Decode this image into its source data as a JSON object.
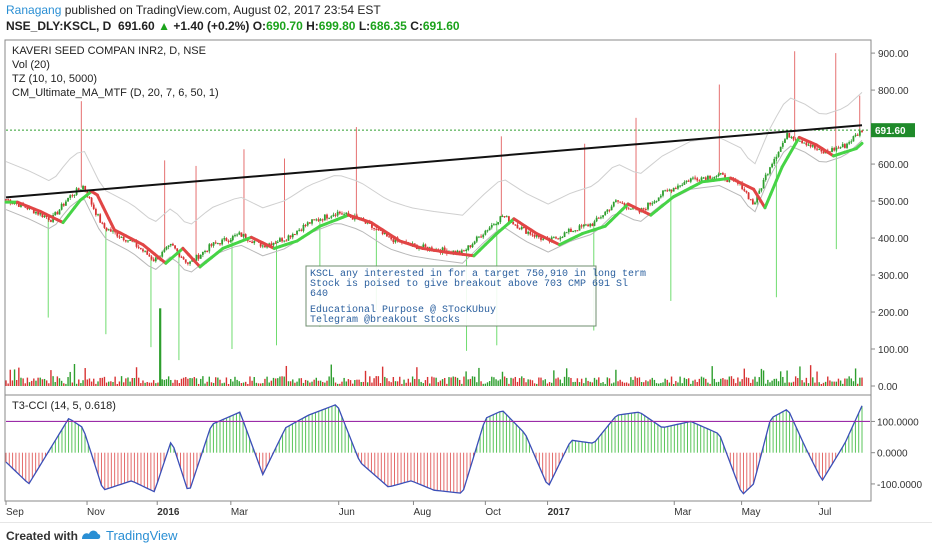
{
  "header": {
    "author": "Ranagang",
    "published": "published on TradingView.com, August 02, 2017 23:54 EST",
    "symbol": "NSE_DLY:KSCL, D",
    "last": "691.60",
    "arrow": "▲",
    "change": "+1.40 (+0.2%)",
    "o_label": "O:",
    "o": "690.70",
    "h_label": "H:",
    "h": "699.80",
    "l_label": "L:",
    "l": "686.35",
    "c_label": "C:",
    "c": "691.60"
  },
  "legend": [
    "KAVERI SEED COMPAN INR2, D, NSE",
    "Vol (20)",
    "TZ (10, 10, 5000)",
    "CM_Ultimate_MA_MTF (D, 20, 7, 6, 50, 1)"
  ],
  "osc_title": "T3-CCI (14, 5, 0.618)",
  "annotation": [
    "KSCL any interested in for a target 750,910 in long term",
    "Stock is poised to give breakout above 703 CMP 691 Sl",
    "640",
    "",
    "Educational Purpose @ STocKUbuy",
    "Telegram @breakout Stocks"
  ],
  "footer": {
    "created": "Created with",
    "brand": "TradingView"
  },
  "colors": {
    "up": "#2e9e2e",
    "down": "#d83333",
    "ma_up": "#46d446",
    "ma_down": "#e14545",
    "trend": "#111111",
    "tag_bg": "#1f8a2a",
    "osc_line": "#3b4fb8",
    "osc_level": "#9b2ca8"
  },
  "chart_data": {
    "type": "candlestick",
    "price_ticks": [
      "900.00",
      "800.00",
      "700.00",
      "600.00",
      "500.00",
      "400.00",
      "300.00",
      "200.00",
      "100.00",
      "0.00"
    ],
    "price_range": [
      0,
      930
    ],
    "last_price_label": "691.60",
    "osc_ticks": [
      "100.0000",
      "0.0000",
      "-100.0000"
    ],
    "osc_range": [
      -145,
      175
    ],
    "osc_level": 100,
    "x_labels": [
      {
        "label": "Sep",
        "t": 0
      },
      {
        "label": "Nov",
        "t": 0.142
      },
      {
        "label": "2016",
        "t": 0.265
      },
      {
        "label": "Mar",
        "t": 0.394
      },
      {
        "label": "Jun",
        "t": 0.583
      },
      {
        "label": "Aug",
        "t": 0.714
      },
      {
        "label": "Oct",
        "t": 0.84
      },
      {
        "label": "2017",
        "t": 0.949
      },
      {
        "label": "Mar",
        "t": 1.171
      },
      {
        "label": "May",
        "t": 1.289
      },
      {
        "label": "Jul",
        "t": 1.424
      }
    ],
    "trendline": [
      {
        "t": 0,
        "price": 510
      },
      {
        "t": 1.5,
        "price": 705
      }
    ],
    "price_path": [
      {
        "t": 0,
        "price": 505
      },
      {
        "t": 0.04,
        "price": 480
      },
      {
        "t": 0.08,
        "price": 450
      },
      {
        "t": 0.11,
        "price": 510
      },
      {
        "t": 0.135,
        "price": 540
      },
      {
        "t": 0.17,
        "price": 430
      },
      {
        "t": 0.22,
        "price": 390
      },
      {
        "t": 0.26,
        "price": 340
      },
      {
        "t": 0.29,
        "price": 380
      },
      {
        "t": 0.32,
        "price": 330
      },
      {
        "t": 0.36,
        "price": 380
      },
      {
        "t": 0.41,
        "price": 410
      },
      {
        "t": 0.45,
        "price": 380
      },
      {
        "t": 0.49,
        "price": 400
      },
      {
        "t": 0.53,
        "price": 440
      },
      {
        "t": 0.58,
        "price": 470
      },
      {
        "t": 0.62,
        "price": 450
      },
      {
        "t": 0.67,
        "price": 400
      },
      {
        "t": 0.71,
        "price": 380
      },
      {
        "t": 0.75,
        "price": 370
      },
      {
        "t": 0.8,
        "price": 360
      },
      {
        "t": 0.84,
        "price": 420
      },
      {
        "t": 0.87,
        "price": 460
      },
      {
        "t": 0.91,
        "price": 420
      },
      {
        "t": 0.95,
        "price": 390
      },
      {
        "t": 0.99,
        "price": 420
      },
      {
        "t": 1.03,
        "price": 440
      },
      {
        "t": 1.07,
        "price": 500
      },
      {
        "t": 1.11,
        "price": 470
      },
      {
        "t": 1.15,
        "price": 520
      },
      {
        "t": 1.2,
        "price": 560
      },
      {
        "t": 1.25,
        "price": 570
      },
      {
        "t": 1.29,
        "price": 540
      },
      {
        "t": 1.31,
        "price": 490
      },
      {
        "t": 1.34,
        "price": 600
      },
      {
        "t": 1.37,
        "price": 680
      },
      {
        "t": 1.4,
        "price": 660
      },
      {
        "t": 1.43,
        "price": 630
      },
      {
        "t": 1.47,
        "price": 650
      },
      {
        "t": 1.5,
        "price": 692
      }
    ],
    "tz_spikes_high": [
      {
        "t": 0.132,
        "price": 770
      },
      {
        "t": 0.278,
        "price": 610
      },
      {
        "t": 0.333,
        "price": 595
      },
      {
        "t": 0.417,
        "price": 640
      },
      {
        "t": 0.488,
        "price": 615
      },
      {
        "t": 0.614,
        "price": 700
      },
      {
        "t": 0.868,
        "price": 675
      },
      {
        "t": 1.014,
        "price": 655
      },
      {
        "t": 1.104,
        "price": 725
      },
      {
        "t": 1.25,
        "price": 815
      },
      {
        "t": 1.382,
        "price": 905
      },
      {
        "t": 1.454,
        "price": 900
      },
      {
        "t": 1.496,
        "price": 785
      }
    ],
    "tz_spikes_low": [
      {
        "t": 0.074,
        "price": 185
      },
      {
        "t": 0.175,
        "price": 140
      },
      {
        "t": 0.254,
        "price": 105
      },
      {
        "t": 0.303,
        "price": 70
      },
      {
        "t": 0.396,
        "price": 100
      },
      {
        "t": 0.474,
        "price": 110
      },
      {
        "t": 0.55,
        "price": 160
      },
      {
        "t": 0.649,
        "price": 205
      },
      {
        "t": 0.807,
        "price": 95
      },
      {
        "t": 0.86,
        "price": 110
      },
      {
        "t": 1.03,
        "price": 150
      },
      {
        "t": 1.165,
        "price": 230
      },
      {
        "t": 1.35,
        "price": 240
      },
      {
        "t": 1.455,
        "price": 370
      }
    ],
    "volume_spike": {
      "t": 0.27,
      "price": 210
    },
    "osc_path": [
      {
        "t": 0,
        "v": -30
      },
      {
        "t": 0.04,
        "v": -100
      },
      {
        "t": 0.08,
        "v": 20
      },
      {
        "t": 0.11,
        "v": 110
      },
      {
        "t": 0.135,
        "v": 80
      },
      {
        "t": 0.17,
        "v": -120
      },
      {
        "t": 0.22,
        "v": -90
      },
      {
        "t": 0.26,
        "v": -125
      },
      {
        "t": 0.29,
        "v": 40
      },
      {
        "t": 0.32,
        "v": -130
      },
      {
        "t": 0.36,
        "v": 90
      },
      {
        "t": 0.41,
        "v": 130
      },
      {
        "t": 0.45,
        "v": -70
      },
      {
        "t": 0.49,
        "v": 80
      },
      {
        "t": 0.53,
        "v": 120
      },
      {
        "t": 0.58,
        "v": 155
      },
      {
        "t": 0.62,
        "v": -30
      },
      {
        "t": 0.67,
        "v": -110
      },
      {
        "t": 0.71,
        "v": -90
      },
      {
        "t": 0.75,
        "v": -120
      },
      {
        "t": 0.8,
        "v": -130
      },
      {
        "t": 0.84,
        "v": 110
      },
      {
        "t": 0.87,
        "v": 135
      },
      {
        "t": 0.91,
        "v": 60
      },
      {
        "t": 0.95,
        "v": -110
      },
      {
        "t": 0.99,
        "v": 40
      },
      {
        "t": 1.03,
        "v": 30
      },
      {
        "t": 1.07,
        "v": 120
      },
      {
        "t": 1.11,
        "v": 130
      },
      {
        "t": 1.15,
        "v": 80
      },
      {
        "t": 1.2,
        "v": 100
      },
      {
        "t": 1.25,
        "v": 60
      },
      {
        "t": 1.29,
        "v": -135
      },
      {
        "t": 1.31,
        "v": -100
      },
      {
        "t": 1.34,
        "v": 110
      },
      {
        "t": 1.37,
        "v": 140
      },
      {
        "t": 1.4,
        "v": 20
      },
      {
        "t": 1.43,
        "v": -90
      },
      {
        "t": 1.47,
        "v": 30
      },
      {
        "t": 1.5,
        "v": 150
      }
    ]
  }
}
